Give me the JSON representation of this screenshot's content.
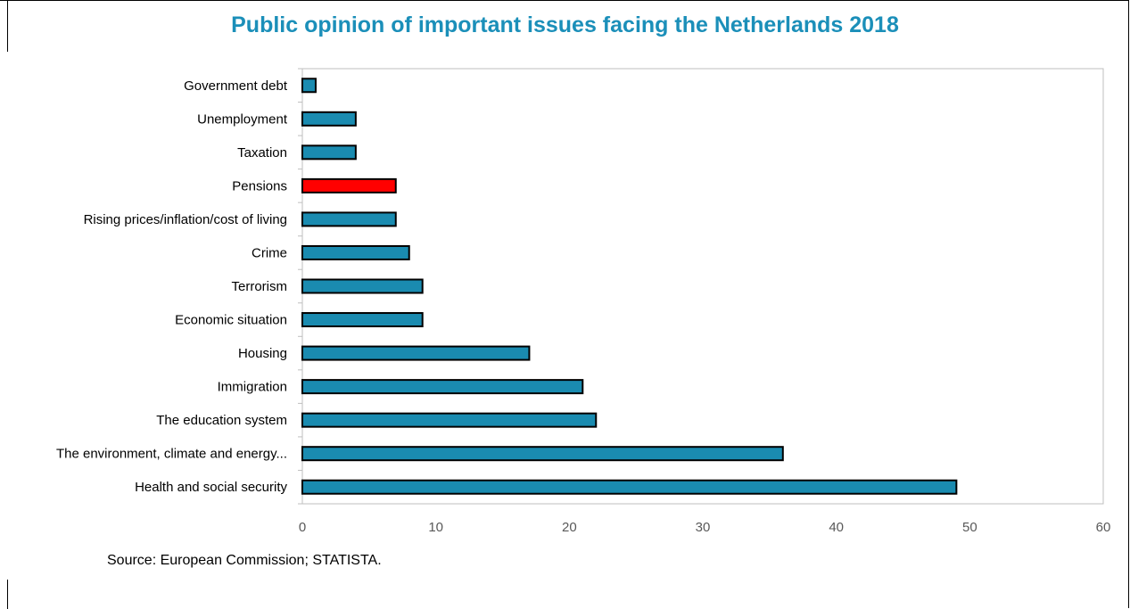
{
  "chart_data": {
    "type": "bar",
    "orientation": "horizontal",
    "title": "Public opinion of important issues facing the Netherlands 2018",
    "categories": [
      "Government debt",
      "Unemployment",
      "Taxation",
      "Pensions",
      "Rising prices/inflation/cost of living",
      "Crime",
      "Terrorism",
      "Economic situation",
      "Housing",
      "Immigration",
      "The education system",
      "The environment, climate and energy...",
      "Health and social security"
    ],
    "values": [
      1,
      4,
      4,
      7,
      7,
      8,
      9,
      9,
      17,
      21,
      22,
      36,
      49
    ],
    "highlight_category": "Pensions",
    "xlim": [
      0,
      60
    ],
    "xticks": [
      0,
      10,
      20,
      30,
      40,
      50,
      60
    ],
    "grid": false,
    "legend": "none",
    "colors": {
      "bar": "#1a8bb0",
      "highlight": "#ff0000",
      "outline": "#000000",
      "title": "#1b8fb9",
      "axis": "#bfbfbf",
      "tick_text": "#595959"
    }
  },
  "source": "Source: European Commission; STATISTA."
}
